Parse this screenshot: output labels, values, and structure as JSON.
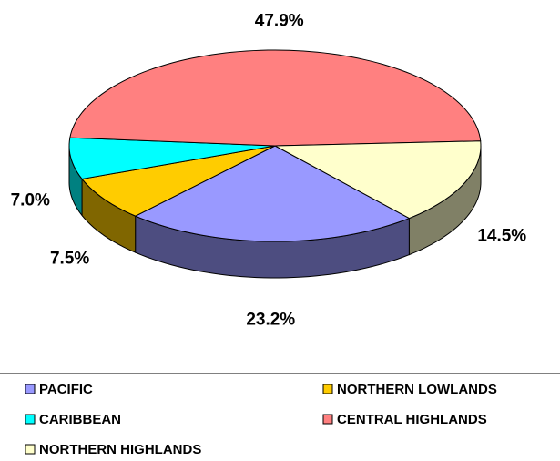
{
  "chart_data": {
    "type": "pie3d",
    "categories": [
      "PACIFIC",
      "NORTHERN LOWLANDS",
      "CARIBBEAN",
      "CENTRAL HIGHLANDS",
      "NORTHERN HIGHLANDS"
    ],
    "values": [
      23.2,
      7.5,
      7.0,
      47.9,
      14.5
    ],
    "value_labels": [
      "23.2%",
      "7.5%",
      "7.0%",
      "47.9%",
      "14.5%"
    ],
    "colors": [
      "#9999ff",
      "#ffcc00",
      "#00ffff",
      "#ff8080",
      "#ffffcc"
    ]
  }
}
